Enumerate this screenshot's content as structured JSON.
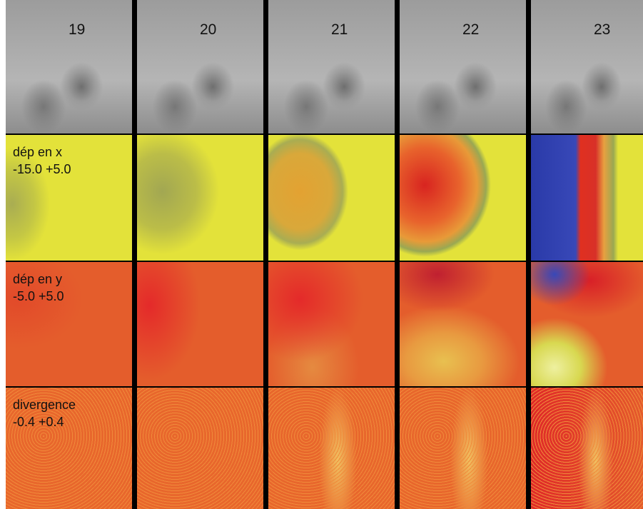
{
  "columns": [
    "19",
    "20",
    "21",
    "22",
    "23"
  ],
  "rows": [
    {
      "name": "dép en x",
      "range": "-15.0 +5.0"
    },
    {
      "name": "dép en y",
      "range": "-5.0 +5.0"
    },
    {
      "name": "divergence",
      "range": "-0.4 +0.4"
    }
  ]
}
